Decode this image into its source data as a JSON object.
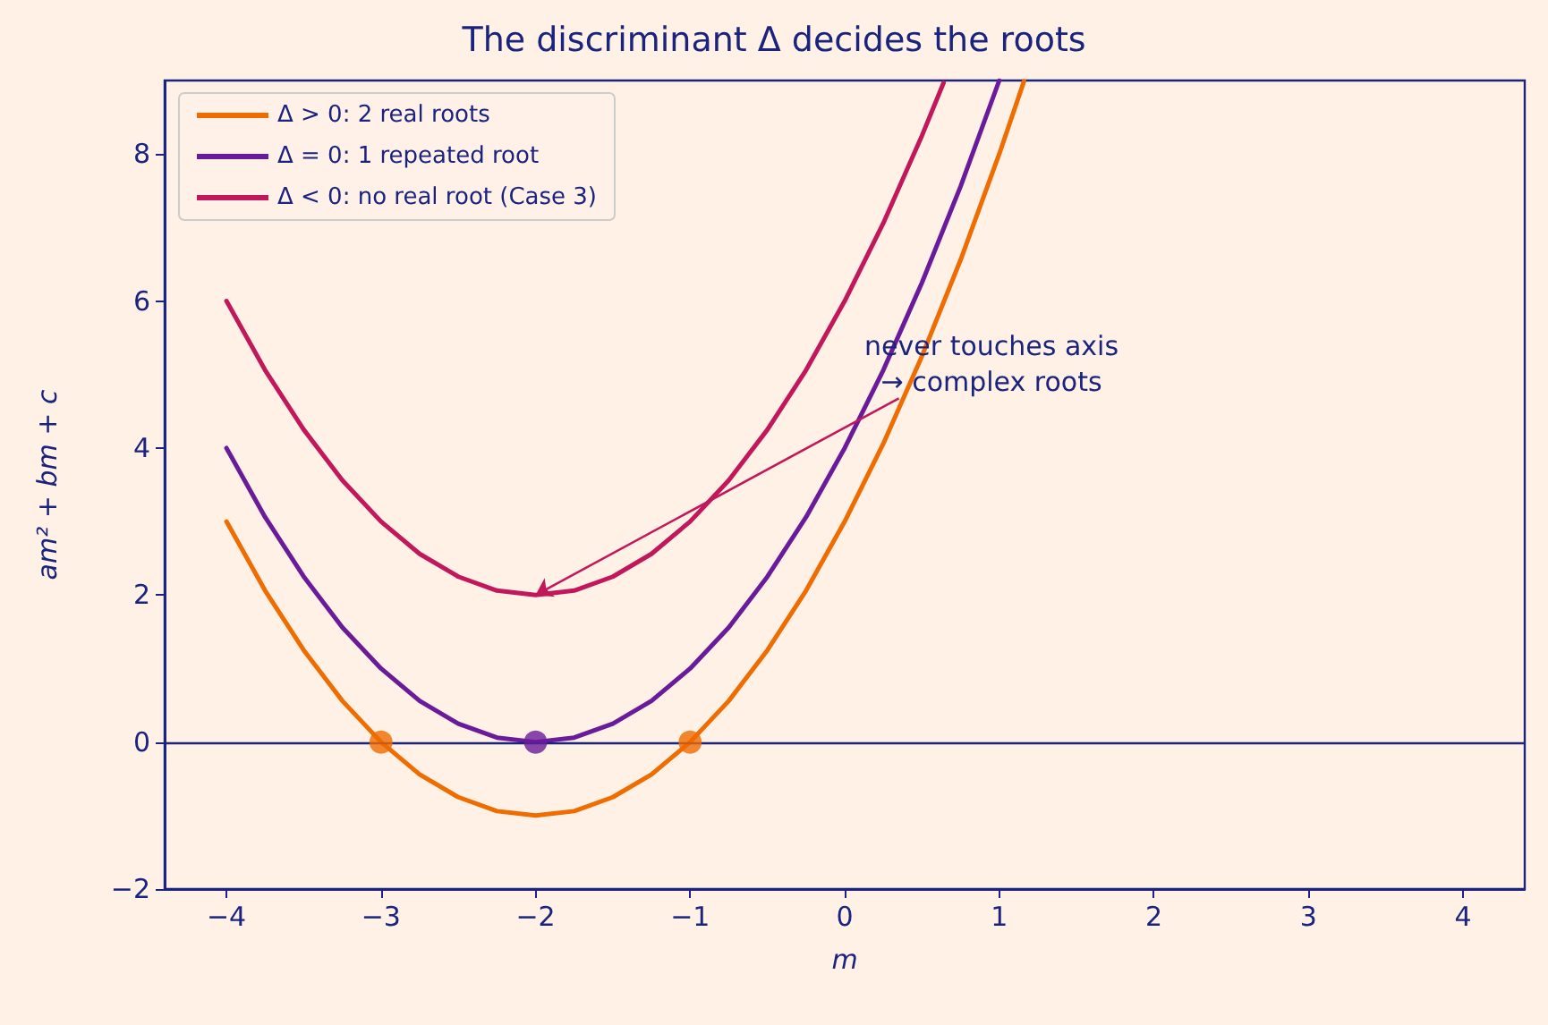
{
  "chart_data": {
    "type": "line",
    "title": "The discriminant Δ decides the roots",
    "xlabel": "m",
    "ylabel": "am² + bm + c",
    "xlim": [
      -4.4,
      4.4
    ],
    "xticks": [
      {
        "value": -4,
        "label": "−4"
      },
      {
        "value": -3,
        "label": "−3"
      },
      {
        "value": -2,
        "label": "−2"
      },
      {
        "value": -1,
        "label": "−1"
      },
      0,
      1,
      2,
      3,
      4
    ],
    "ylim": [
      -2,
      9
    ],
    "yticks": [
      {
        "value": -2,
        "label": "−2"
      },
      0,
      2,
      4,
      6,
      8
    ],
    "grid": false,
    "legend": "top left",
    "marker": "none",
    "line_style": "solid",
    "series": [
      {
        "name": "Δ > 0: 2 real roots",
        "color": "#ef6c00",
        "x": [
          -4,
          -3.75,
          -3.5,
          -3.25,
          -3,
          -2.75,
          -2.5,
          -2.25,
          -2,
          -1.75,
          -1.5,
          -1.25,
          -1,
          -0.75,
          -0.5,
          -0.25,
          0,
          0.25,
          0.5,
          0.75,
          1,
          1.16
        ],
        "values": [
          3,
          2.06,
          1.25,
          0.56,
          0,
          -0.44,
          -0.75,
          -0.94,
          -1,
          -0.94,
          -0.75,
          -0.44,
          0,
          0.56,
          1.25,
          2.06,
          3,
          4.06,
          5.25,
          6.56,
          8,
          8.99
        ]
      },
      {
        "name": "Δ = 0: 1 repeated root",
        "color": "#6a1b9a",
        "x": [
          -4,
          -3.75,
          -3.5,
          -3.25,
          -3,
          -2.75,
          -2.5,
          -2.25,
          -2,
          -1.75,
          -1.5,
          -1.25,
          -1,
          -0.75,
          -0.5,
          -0.25,
          0,
          0.25,
          0.5,
          0.75,
          1
        ],
        "values": [
          4,
          3.06,
          2.25,
          1.56,
          1,
          0.56,
          0.25,
          0.06,
          0,
          0.06,
          0.25,
          0.56,
          1,
          1.56,
          2.25,
          3.06,
          4,
          5.06,
          6.25,
          7.56,
          9
        ]
      },
      {
        "name": "Δ < 0: no real root (Case 3)",
        "color": "#c2185b",
        "x": [
          -4,
          -3.75,
          -3.5,
          -3.25,
          -3,
          -2.75,
          -2.5,
          -2.25,
          -2,
          -1.75,
          -1.5,
          -1.25,
          -1,
          -0.75,
          -0.5,
          -0.25,
          0,
          0.25,
          0.5,
          0.64
        ],
        "values": [
          6,
          5.06,
          4.25,
          3.56,
          3,
          2.56,
          2.25,
          2.06,
          2,
          2.06,
          2.25,
          2.56,
          3,
          3.56,
          4.25,
          5.06,
          6,
          7.06,
          8.25,
          8.97
        ]
      },
      {
        "type": "scatter",
        "marker": "circle",
        "color": "#ef6c00",
        "x": [
          -3,
          -1
        ],
        "values": [
          0,
          0
        ]
      },
      {
        "type": "scatter",
        "marker": "circle",
        "color": "#6a1b9a",
        "x": [
          -2
        ],
        "values": [
          0
        ]
      }
    ],
    "ref_lines": [
      {
        "axis": "y",
        "value": 0,
        "color": "#1a237e"
      }
    ],
    "annotations": [
      {
        "text": "never touches axis\n→ complex roots",
        "x": -2,
        "y": 2
      }
    ]
  }
}
